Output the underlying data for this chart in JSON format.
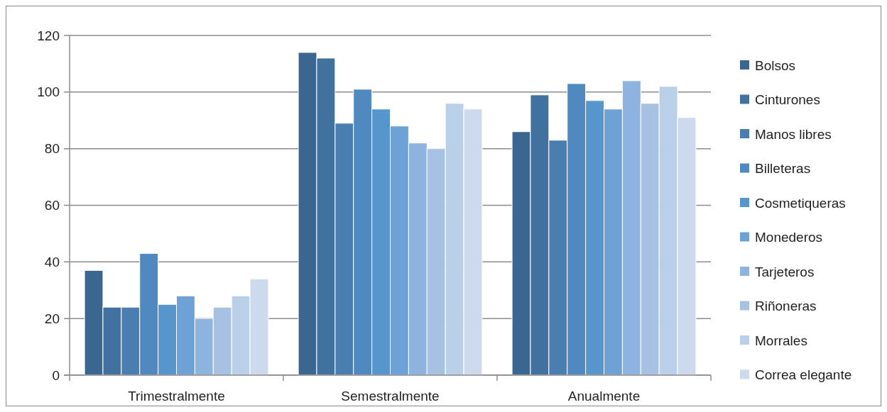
{
  "chart_data": {
    "type": "bar",
    "categories": [
      "Trimestralmente",
      "Semestralmente",
      "Anualmente"
    ],
    "series": [
      {
        "name": "Bolsos",
        "color": "#3a6690",
        "values": [
          37,
          114,
          86
        ]
      },
      {
        "name": "Cinturones",
        "color": "#40719f",
        "values": [
          24,
          112,
          99
        ]
      },
      {
        "name": "Manos libres",
        "color": "#4a7db0",
        "values": [
          24,
          89,
          83
        ]
      },
      {
        "name": "Billeteras",
        "color": "#4f89c0",
        "values": [
          43,
          101,
          103
        ]
      },
      {
        "name": "Cosmetiqueras",
        "color": "#5796cc",
        "values": [
          25,
          94,
          97
        ]
      },
      {
        "name": "Monederos",
        "color": "#6ea1d6",
        "values": [
          28,
          88,
          94
        ]
      },
      {
        "name": "Tarjeteros",
        "color": "#8db3de",
        "values": [
          20,
          82,
          104
        ]
      },
      {
        "name": "Riñoneras",
        "color": "#a7c1e3",
        "values": [
          24,
          80,
          96
        ]
      },
      {
        "name": "Morrales",
        "color": "#bacfe8",
        "values": [
          28,
          96,
          102
        ]
      },
      {
        "name": "Correa elegante",
        "color": "#cddaee",
        "values": [
          34,
          94,
          91
        ]
      }
    ],
    "ylim": [
      0,
      120
    ],
    "yticks": [
      0,
      20,
      40,
      60,
      80,
      100,
      120
    ],
    "grid": "y",
    "legend": "right"
  }
}
